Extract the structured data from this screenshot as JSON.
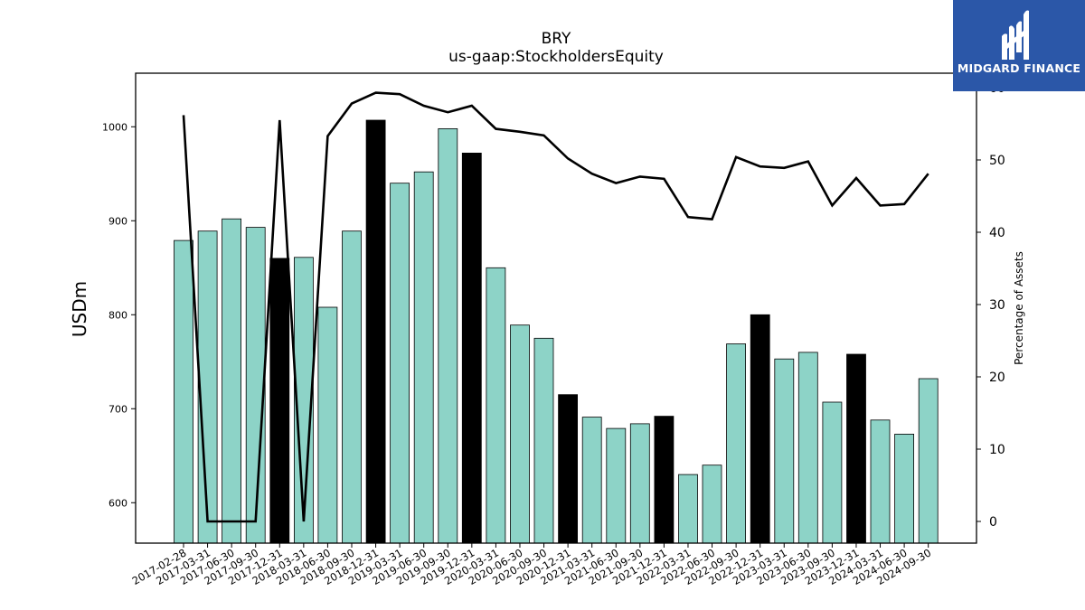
{
  "header": {
    "title": "BRY",
    "subtitle": "us-gaap:StockholdersEquity"
  },
  "logo": {
    "text": "MIDGARD FINANCE",
    "icon": "midgard-logo-icon",
    "background": "#2b57a8"
  },
  "colors": {
    "bar_default": "#8dd3c7",
    "bar_highlight": "#000000",
    "line": "#000000"
  },
  "chart_data": {
    "type": "bar",
    "title": "BRY",
    "subtitle": "us-gaap:StockholdersEquity",
    "ylabel": "USDm",
    "y2label": "Percentage of Assets",
    "ylim": [
      557,
      1057
    ],
    "y2lim": [
      -3,
      62
    ],
    "yticks": [
      600,
      700,
      800,
      900,
      1000
    ],
    "y2ticks": [
      0,
      10,
      20,
      30,
      40,
      50,
      60
    ],
    "grid": false,
    "categories": [
      "2017-02-28",
      "2017-03-31",
      "2017-06-30",
      "2017-09-30",
      "2017-12-31",
      "2018-03-31",
      "2018-06-30",
      "2018-09-30",
      "2018-12-31",
      "2019-03-31",
      "2019-06-30",
      "2019-09-30",
      "2019-12-31",
      "2020-03-31",
      "2020-06-30",
      "2020-09-30",
      "2020-12-31",
      "2021-03-31",
      "2021-06-30",
      "2021-09-30",
      "2021-12-31",
      "2022-03-31",
      "2022-06-30",
      "2022-09-30",
      "2022-12-31",
      "2023-03-31",
      "2023-06-30",
      "2023-09-30",
      "2023-12-31",
      "2024-03-31",
      "2024-06-30",
      "2024-09-30"
    ],
    "series": [
      {
        "kind": "bar",
        "axis": "left",
        "values": [
          879,
          889,
          902,
          893,
          860,
          861,
          808,
          889,
          1007,
          940,
          952,
          998,
          972,
          850,
          789,
          775,
          715,
          691,
          679,
          684,
          692,
          630,
          640,
          769,
          800,
          753,
          760,
          707,
          758,
          688,
          673,
          732
        ],
        "highlight": [
          false,
          false,
          false,
          false,
          true,
          false,
          false,
          false,
          true,
          false,
          false,
          false,
          true,
          false,
          false,
          false,
          true,
          false,
          false,
          false,
          true,
          false,
          false,
          false,
          true,
          false,
          false,
          false,
          true,
          false,
          false,
          false
        ]
      },
      {
        "kind": "line",
        "axis": "right",
        "values": [
          56.2,
          0,
          0,
          0,
          55.5,
          0,
          53.3,
          57.8,
          59.3,
          59.1,
          57.5,
          56.6,
          57.5,
          54.3,
          53.9,
          53.4,
          50.2,
          48.1,
          46.8,
          47.7,
          47.4,
          42.1,
          41.8,
          50.4,
          49.1,
          48.9,
          49.8,
          43.7,
          47.5,
          43.7,
          43.9,
          48.1
        ]
      }
    ]
  }
}
